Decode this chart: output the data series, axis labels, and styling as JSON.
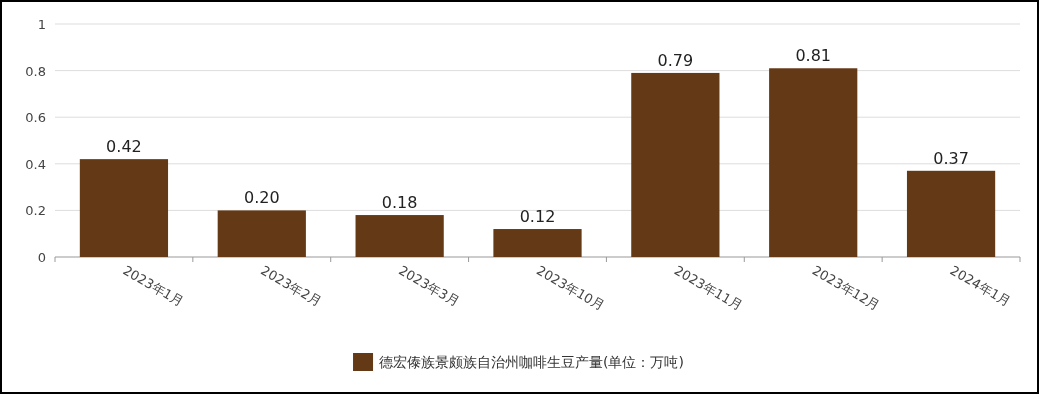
{
  "chart_data": {
    "type": "bar",
    "categories": [
      "2023年1月",
      "2023年2月",
      "2023年3月",
      "2023年10月",
      "2023年11月",
      "2023年12月",
      "2024年1月"
    ],
    "series": [
      {
        "name": "德宏傣族景颇族自治州咖啡生豆产量(单位：万吨)",
        "color": "#643a16",
        "values": [
          0.42,
          0.2,
          0.18,
          0.12,
          0.79,
          0.81,
          0.37
        ],
        "value_labels": [
          "0.42",
          "0.20",
          "0.18",
          "0.12",
          "0.79",
          "0.81",
          "0.37"
        ]
      }
    ],
    "ylim": [
      0,
      1
    ],
    "yticks": [
      0,
      0.2,
      0.4,
      0.6,
      0.8,
      1
    ],
    "grid": "y",
    "legend": "bottom"
  }
}
